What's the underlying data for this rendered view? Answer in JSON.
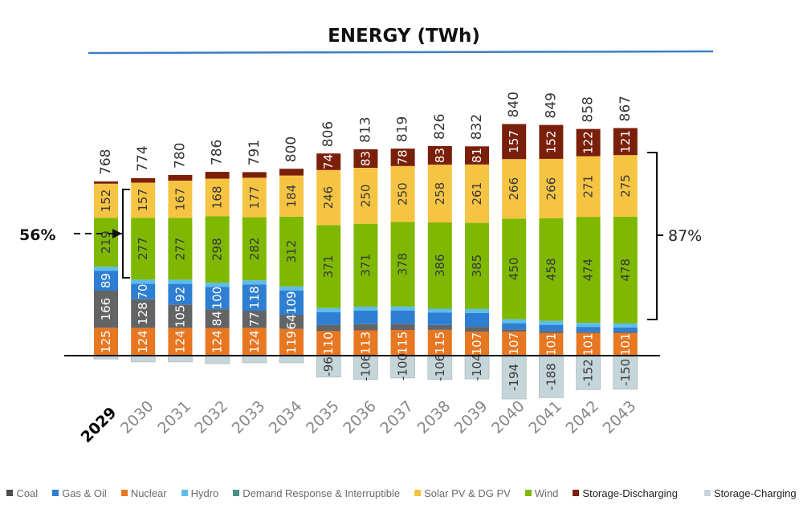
{
  "chart_data": {
    "type": "bar",
    "stacked": true,
    "title": "ENERGY (TWh)",
    "xlabel": "",
    "ylabel": "TWh",
    "categories": [
      "2029",
      "2030",
      "2031",
      "2032",
      "2033",
      "2034",
      "2035",
      "2036",
      "2037",
      "2038",
      "2039",
      "2040",
      "2041",
      "2042",
      "2043"
    ],
    "totals": [
      768,
      774,
      780,
      786,
      791,
      800,
      806,
      813,
      819,
      826,
      832,
      840,
      849,
      858,
      867
    ],
    "series": [
      {
        "name": "Nuclear",
        "color": "#E87722",
        "label_color": "#ffffff",
        "values": [
          125,
          124,
          124,
          124,
          124,
          119,
          110,
          113,
          115,
          115,
          107,
          107,
          101,
          101,
          101
        ],
        "labeled": [
          true,
          true,
          true,
          true,
          true,
          true,
          true,
          true,
          true,
          true,
          true,
          true,
          true,
          true,
          true
        ]
      },
      {
        "name": "Coal",
        "color": "#636466",
        "label_color": "#ffffff",
        "values": [
          166,
          128,
          105,
          84,
          77,
          64,
          28,
          28,
          27,
          22,
          22,
          10,
          9,
          6,
          5
        ],
        "labeled": [
          true,
          true,
          true,
          true,
          true,
          true,
          false,
          false,
          false,
          false,
          false,
          false,
          false,
          false,
          false
        ]
      },
      {
        "name": "Gas & Oil",
        "color": "#2E7FD3",
        "label_color": "#ffffff",
        "values": [
          89,
          70,
          92,
          100,
          118,
          109,
          57,
          60,
          60,
          55,
          62,
          28,
          28,
          22,
          20
        ],
        "labeled": [
          true,
          true,
          true,
          true,
          true,
          true,
          false,
          false,
          false,
          false,
          false,
          false,
          false,
          false,
          false
        ]
      },
      {
        "name": "Hydro",
        "color": "#5DBCEB",
        "label_color": "#ffffff",
        "values": [
          18,
          18,
          18,
          18,
          18,
          18,
          18,
          18,
          18,
          18,
          18,
          18,
          18,
          18,
          18
        ],
        "labeled": [
          false,
          false,
          false,
          false,
          false,
          false,
          false,
          false,
          false,
          false,
          false,
          false,
          false,
          false,
          false
        ]
      },
      {
        "name": "Demand Response & Interruptible",
        "color": "#4A8F8A",
        "label_color": "#ffffff",
        "values": [
          0,
          0,
          0,
          0,
          0,
          0,
          0,
          0,
          0,
          0,
          0,
          0,
          0,
          0,
          0
        ],
        "labeled": [
          false,
          false,
          false,
          false,
          false,
          false,
          false,
          false,
          false,
          false,
          false,
          false,
          false,
          false,
          false
        ]
      },
      {
        "name": "Wind",
        "color": "#7FB800",
        "label_color": "#3a3a3a",
        "values": [
          219,
          277,
          277,
          298,
          282,
          312,
          371,
          371,
          378,
          386,
          385,
          450,
          458,
          474,
          478
        ],
        "labeled": [
          true,
          true,
          true,
          true,
          true,
          true,
          true,
          true,
          true,
          true,
          true,
          true,
          true,
          true,
          true
        ]
      },
      {
        "name": "Solar PV & DG PV",
        "color": "#F6C443",
        "label_color": "#3a3a3a",
        "values": [
          152,
          157,
          167,
          168,
          177,
          184,
          246,
          250,
          250,
          258,
          261,
          266,
          266,
          271,
          275
        ],
        "labeled": [
          true,
          true,
          true,
          true,
          true,
          true,
          true,
          true,
          true,
          true,
          true,
          true,
          true,
          true,
          true
        ]
      },
      {
        "name": "Storage-Discharging",
        "color": "#7A1F0A",
        "label_color": "#ffffff",
        "values": [
          10,
          20,
          25,
          30,
          25,
          30,
          74,
          83,
          78,
          83,
          81,
          157,
          152,
          122,
          121
        ],
        "labeled": [
          false,
          false,
          false,
          false,
          false,
          false,
          true,
          true,
          true,
          true,
          true,
          true,
          true,
          true,
          true
        ]
      },
      {
        "name": "Storage-Charging",
        "color": "#C5D6DA",
        "label_color": "#3a3a3a",
        "values": [
          -15,
          -28,
          -28,
          -36,
          -32,
          -32,
          -96,
          -106,
          -100,
          -106,
          -104,
          -194,
          -188,
          -152,
          -150
        ],
        "labeled": [
          false,
          false,
          false,
          false,
          false,
          false,
          true,
          true,
          true,
          true,
          true,
          true,
          true,
          true,
          true
        ]
      }
    ],
    "annotations": [
      {
        "text": "56%",
        "note": "share of Wind + Solar in 2030 (bracketed)",
        "category": "2030",
        "side": "left"
      },
      {
        "text": "87%",
        "note": "share of Wind + Solar in 2043 (bracketed)",
        "category": "2043",
        "side": "right"
      }
    ],
    "ylim": [
      -200,
      900
    ],
    "grid": false,
    "legend_position": "bottom"
  },
  "legend": [
    {
      "label": "Coal",
      "color": "#4d4d4d"
    },
    {
      "label": "Gas & Oil",
      "color": "#2E7FD3"
    },
    {
      "label": "Nuclear",
      "color": "#E87722"
    },
    {
      "label": "Hydro",
      "color": "#5DBCEB"
    },
    {
      "label": "Demand Response & Interruptible",
      "color": "#4A8F8A"
    },
    {
      "label": "Solar PV & DG PV",
      "color": "#F6C443"
    },
    {
      "label": "Wind",
      "color": "#7FB800"
    },
    {
      "label": "Storage-Discharging",
      "color": "#7A1F0A"
    },
    {
      "label": "Storage-Charging",
      "color": "#C5D6DA"
    }
  ],
  "title_rule_color": "#3D7EC4"
}
